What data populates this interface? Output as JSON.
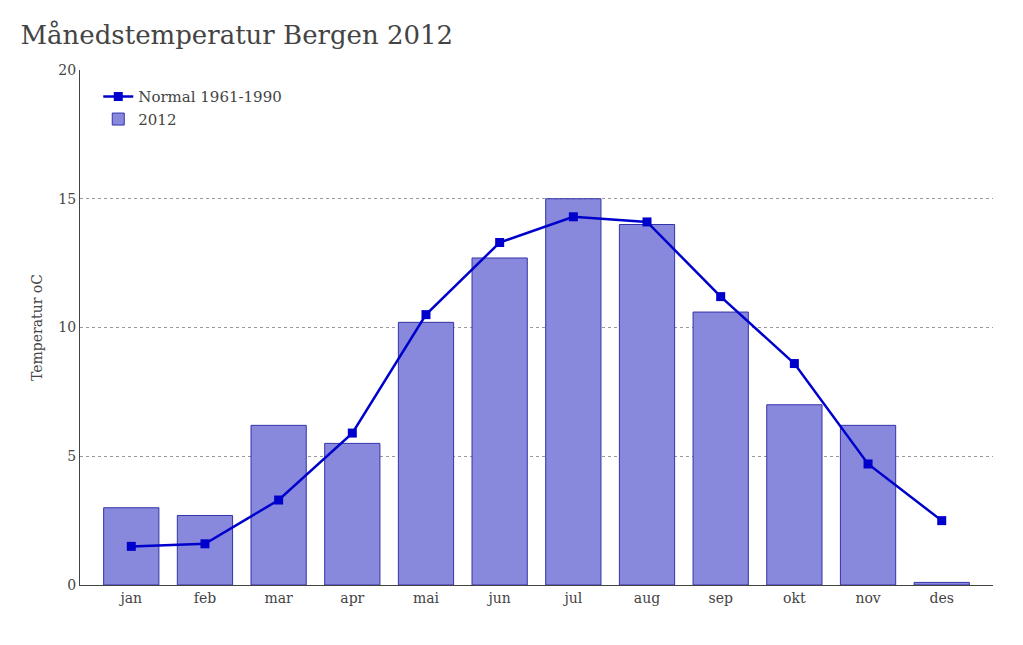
{
  "chart_data": {
    "type": "bar",
    "title": "Månedstemperatur Bergen 2012",
    "ylabel": "Temperatur oC",
    "categories": [
      "jan",
      "feb",
      "mar",
      "apr",
      "mai",
      "jun",
      "jul",
      "aug",
      "sep",
      "okt",
      "nov",
      "des"
    ],
    "series": [
      {
        "name": "Normal 1961-1990",
        "type": "line",
        "color": "#0000cc",
        "marker": "square",
        "values": [
          1.5,
          1.6,
          3.3,
          5.9,
          10.5,
          13.3,
          14.3,
          14.1,
          11.2,
          8.6,
          4.7,
          2.5
        ]
      },
      {
        "name": "2012",
        "type": "bar",
        "color": "#8888dd",
        "values": [
          3.0,
          2.7,
          6.2,
          5.5,
          10.2,
          12.7,
          15.0,
          14.0,
          10.6,
          7.0,
          6.2,
          0.1
        ]
      }
    ],
    "ylim": [
      0,
      20
    ],
    "yticks": [
      0,
      5,
      10,
      15,
      20
    ],
    "grid": true,
    "legend": "upper left"
  }
}
